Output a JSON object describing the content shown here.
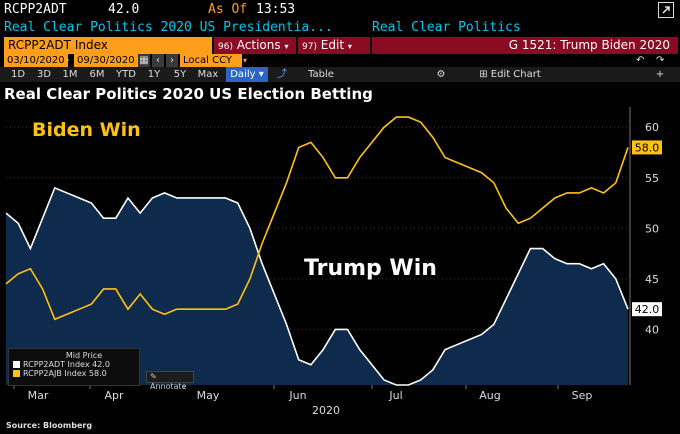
{
  "header": {
    "ticker": "RCPP2ADT",
    "last_value": "42.0",
    "as_of_label": "As Of",
    "as_of_time": "13:53",
    "description": "Real Clear Politics 2020 US Presidentia...",
    "source_name": "Real Clear Politics",
    "square_icon": "window-icon"
  },
  "toolbar": {
    "security": "RCPP2ADT Index",
    "actions_num": "96)",
    "actions_label": "Actions",
    "edit_num": "97)",
    "edit_label": "Edit",
    "chart_title": "G 1521: Trump Biden 2020"
  },
  "dates": {
    "start": "03/10/2020",
    "end": "09/30/2020",
    "currency": "Local CCY"
  },
  "periods": [
    "1D",
    "3D",
    "1M",
    "6M",
    "YTD",
    "1Y",
    "5Y",
    "Max"
  ],
  "frequency": "Daily",
  "table_label": "Table",
  "edit_chart_label": "Edit Chart",
  "page_title": "Real Clear Politics 2020 US Election Betting",
  "annotations": {
    "biden": "Biden Win",
    "trump": "Trump Win"
  },
  "legend": {
    "header": "Mid Price",
    "trump_entry": "RCPP2ADT Index 42.0",
    "biden_entry": "RCPP2AJB Index 58.0"
  },
  "annotate_label": "Annotate",
  "source": "Source: Bloomberg",
  "colors": {
    "amber": "#ff9e1b",
    "biden": "#ffc20e",
    "trump": "#ffffff",
    "fill": "#0e2a4c",
    "menu_red": "#8a0b22",
    "active_blue": "#2a66c8",
    "cyan": "#00c8e8"
  },
  "chart_data": {
    "type": "line",
    "title": "Real Clear Politics 2020 US Election Betting",
    "x_ticks": [
      "Mar",
      "Apr",
      "May",
      "Jun",
      "Jul",
      "Aug",
      "Sep"
    ],
    "x_year": "2020",
    "y_ticks": [
      40,
      45,
      50,
      55,
      60
    ],
    "ylim": [
      34.5,
      62
    ],
    "x": [
      "03/10",
      "03/14",
      "03/18",
      "03/22",
      "03/26",
      "03/30",
      "04/03",
      "04/07",
      "04/11",
      "04/15",
      "04/19",
      "04/23",
      "04/27",
      "05/01",
      "05/05",
      "05/09",
      "05/13",
      "05/17",
      "05/21",
      "05/25",
      "05/29",
      "06/02",
      "06/06",
      "06/10",
      "06/14",
      "06/18",
      "06/22",
      "06/26",
      "06/30",
      "07/04",
      "07/08",
      "07/12",
      "07/16",
      "07/20",
      "07/24",
      "07/28",
      "08/01",
      "08/05",
      "08/09",
      "08/13",
      "08/17",
      "08/21",
      "08/25",
      "08/29",
      "09/02",
      "09/06",
      "09/10",
      "09/14",
      "09/18",
      "09/22",
      "09/26",
      "09/30"
    ],
    "series": [
      {
        "name": "RCPP2AJB Index",
        "label": "58.0",
        "values": [
          44.5,
          45.5,
          46,
          44,
          41,
          41.5,
          42,
          42.5,
          44,
          44,
          42,
          43.5,
          42,
          41.5,
          42,
          42,
          42,
          42,
          42,
          42.5,
          45,
          48.5,
          51.5,
          54.5,
          58,
          58.5,
          57,
          55,
          55,
          57,
          58.5,
          60,
          61,
          61,
          60.5,
          59,
          57,
          56.5,
          56,
          55.5,
          54.5,
          52,
          50.5,
          51,
          52,
          53,
          53.5,
          53.5,
          54,
          53.5,
          54.5,
          58
        ]
      },
      {
        "name": "RCPP2ADT Index",
        "label": "42.0",
        "values": [
          51.5,
          50.5,
          48,
          51,
          54,
          53.5,
          53,
          52.5,
          51,
          51,
          53,
          51.5,
          53,
          53.5,
          53,
          53,
          53,
          53,
          53,
          52.5,
          50,
          46.5,
          43.5,
          40.5,
          37,
          36.5,
          38,
          40,
          40,
          38,
          36.5,
          35,
          34.5,
          34.5,
          35,
          36,
          38,
          38.5,
          39,
          39.5,
          40.5,
          43,
          45.5,
          48,
          48,
          47,
          46.5,
          46.5,
          46,
          46.5,
          45,
          42
        ]
      }
    ]
  }
}
